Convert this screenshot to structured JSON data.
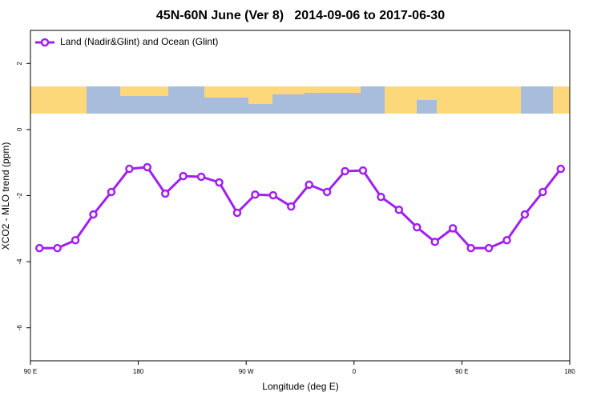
{
  "chart_data": {
    "type": "line",
    "title": "45N-60N June (Ver 8)   2014-09-06 to 2017-06-30",
    "x_label": "Longitude (deg E)",
    "y_label": "XCO2 - MLO trend (ppm)",
    "x": [
      97.5,
      112.5,
      127.5,
      142.5,
      157.5,
      172.5,
      187.5,
      202.5,
      217.5,
      232.5,
      247.5,
      262.5,
      277.5,
      292.5,
      307.5,
      322.5,
      337.5,
      352.5,
      367.5,
      382.5,
      397.5,
      412.5,
      427.5,
      442.5,
      457.5,
      472.5,
      487.5,
      502.5,
      517.5,
      532.5
    ],
    "series": [
      {
        "name": "Land (Nadir&Glint) and Ocean (Glint)",
        "color": "#a020f0",
        "values": [
          -3.59,
          -3.59,
          -3.35,
          -2.57,
          -1.89,
          -1.19,
          -1.14,
          -1.94,
          -1.41,
          -1.43,
          -1.6,
          -2.52,
          -1.97,
          -1.99,
          -2.33,
          -1.67,
          -1.89,
          -1.26,
          -1.24,
          -2.04,
          -2.43,
          -2.96,
          -3.4,
          -2.99,
          -3.59,
          -3.59,
          -3.35,
          -2.57,
          -1.89,
          -1.19
        ]
      }
    ],
    "xlim": [
      90,
      540
    ],
    "xticks": [
      {
        "value": 90,
        "label": "90 E"
      },
      180,
      {
        "value": 270,
        "label": "90 W"
      },
      {
        "value": 360,
        "label": "0"
      },
      {
        "value": 450,
        "label": "90 E"
      },
      {
        "value": 540,
        "label": "180"
      }
    ],
    "ylim": [
      -7,
      3
    ],
    "yticks": [
      -6,
      -4,
      -2,
      0,
      2
    ],
    "legend": "top-left"
  }
}
